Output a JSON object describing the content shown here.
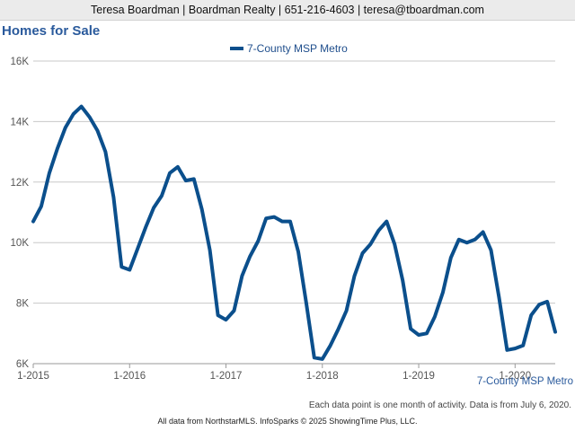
{
  "header": {
    "contact_line": "Teresa Boardman | Boardman Realty | 651-216-4603 | teresa@tboardman.com"
  },
  "colors": {
    "series_line": "#0b4f8c",
    "title": "#2a5a9c",
    "gridline": "#c8c8c8",
    "header_bg": "#ebebeb"
  },
  "chart_data": {
    "type": "line",
    "title": "Homes for Sale",
    "xlabel": "",
    "ylabel": "",
    "legend": {
      "placement": "top-center",
      "entries": [
        "7-County MSP Metro"
      ]
    },
    "x_tick_labels": [
      "1-2015",
      "1-2016",
      "1-2017",
      "1-2018",
      "1-2019",
      "1-2020"
    ],
    "y_tick_labels": [
      "6K",
      "8K",
      "10K",
      "12K",
      "14K",
      "16K"
    ],
    "ylim": [
      6000,
      16000
    ],
    "xlim": [
      "2015-01",
      "2020-06"
    ],
    "grid": true,
    "end_label": "7-County MSP Metro",
    "series": [
      {
        "name": "7-County MSP Metro",
        "x": [
          "2015-01",
          "2015-02",
          "2015-03",
          "2015-04",
          "2015-05",
          "2015-06",
          "2015-07",
          "2015-08",
          "2015-09",
          "2015-10",
          "2015-11",
          "2015-12",
          "2016-01",
          "2016-02",
          "2016-03",
          "2016-04",
          "2016-05",
          "2016-06",
          "2016-07",
          "2016-08",
          "2016-09",
          "2016-10",
          "2016-11",
          "2016-12",
          "2017-01",
          "2017-02",
          "2017-03",
          "2017-04",
          "2017-05",
          "2017-06",
          "2017-07",
          "2017-08",
          "2017-09",
          "2017-10",
          "2017-11",
          "2017-12",
          "2018-01",
          "2018-02",
          "2018-03",
          "2018-04",
          "2018-05",
          "2018-06",
          "2018-07",
          "2018-08",
          "2018-09",
          "2018-10",
          "2018-11",
          "2018-12",
          "2019-01",
          "2019-02",
          "2019-03",
          "2019-04",
          "2019-05",
          "2019-06",
          "2019-07",
          "2019-08",
          "2019-09",
          "2019-10",
          "2019-11",
          "2019-12",
          "2020-01",
          "2020-02",
          "2020-03",
          "2020-04",
          "2020-05",
          "2020-06"
        ],
        "values": [
          10700,
          11200,
          12300,
          13100,
          13800,
          14250,
          14500,
          14150,
          13700,
          13000,
          11500,
          9200,
          9100,
          9800,
          10500,
          11150,
          11550,
          12300,
          12500,
          12050,
          12100,
          11100,
          9750,
          7600,
          7450,
          7750,
          8900,
          9550,
          10050,
          10800,
          10850,
          10700,
          10700,
          9700,
          8000,
          6200,
          6150,
          6600,
          7150,
          7750,
          8900,
          9650,
          9950,
          10400,
          10700,
          9950,
          8750,
          7150,
          6950,
          7000,
          7550,
          8350,
          9500,
          10100,
          10000,
          10100,
          10350,
          9750,
          8200,
          6450,
          6500,
          6600,
          7600,
          7950,
          8050,
          7050
        ]
      }
    ]
  },
  "notes": {
    "footnote": "Each data point is one month of activity. Data is from July 6, 2020.",
    "source": "All data from NorthstarMLS. InfoSparks © 2025 ShowingTime Plus, LLC."
  }
}
